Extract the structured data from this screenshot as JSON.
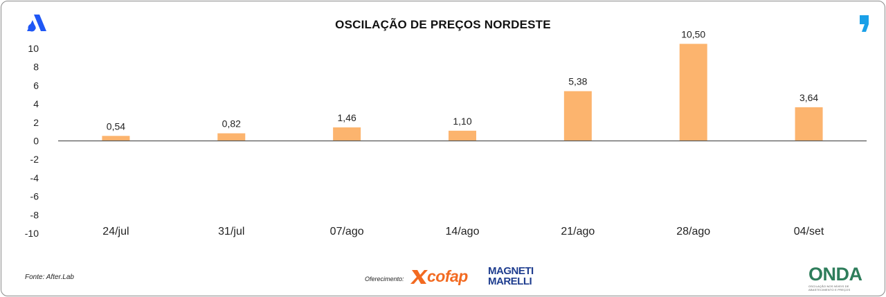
{
  "header": {
    "title": "OSCILAÇÃO DE PREÇOS NORDESTE"
  },
  "footer": {
    "source": "Fonte: After.Lab",
    "sponsor_label": "Oferecimento:",
    "sponsor_1": "cofap",
    "sponsor_2_line1": "MAGNETI",
    "sponsor_2_line2": "MARELLI",
    "brand": "ONDA",
    "brand_tagline": "OSCILAÇÃO NOS NÍVEIS DE ABASTECIMENTO E PREÇOS"
  },
  "icons": {
    "top_left": "a-logo-icon",
    "top_right": "quote-mark-icon"
  },
  "colors": {
    "bar": "#fcb46e",
    "axis": "#555555",
    "text": "#222222",
    "logo_blue": "#1f57f5",
    "cofap_orange": "#f26a21",
    "magneti_blue": "#1e3d8f"
  },
  "chart_data": {
    "type": "bar",
    "title": "OSCILAÇÃO DE PREÇOS NORDESTE",
    "categories": [
      "24/jul",
      "31/jul",
      "07/ago",
      "14/ago",
      "21/ago",
      "28/ago",
      "04/set"
    ],
    "values": [
      0.54,
      0.82,
      1.46,
      1.1,
      5.38,
      10.5,
      3.64
    ],
    "data_labels": [
      "0,54",
      "0,82",
      "1,46",
      "1,10",
      "5,38",
      "10,50",
      "3,64"
    ],
    "y_ticks": [
      10,
      8,
      6,
      4,
      2,
      0,
      -2,
      -4,
      -6,
      -8,
      -10
    ],
    "y_tick_labels": [
      "10",
      "8",
      "6",
      "4",
      "2",
      "0",
      "-2",
      "-4",
      "-6",
      "-8",
      "-10"
    ],
    "ylim": [
      -10,
      10
    ],
    "xlabel": "",
    "ylabel": "",
    "grid": false,
    "legend": "none"
  }
}
